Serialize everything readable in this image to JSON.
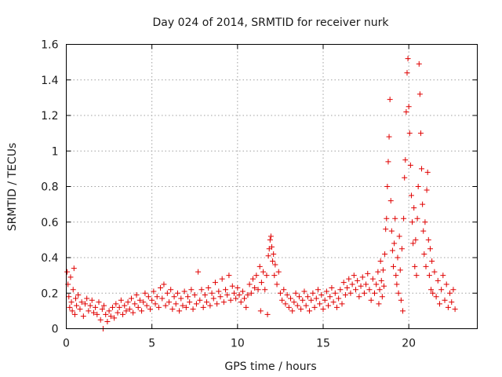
{
  "chart_data": {
    "type": "scatter",
    "title": "Day 024 of 2014, SRMTID for receiver nurk",
    "xlabel": "GPS time / hours",
    "ylabel": "SRMTID / TECUs",
    "xlim": [
      0,
      24
    ],
    "ylim": [
      0,
      1.6
    ],
    "xticks": [
      0,
      5,
      10,
      15,
      20
    ],
    "yticks": [
      0,
      0.2,
      0.4,
      0.6,
      0.8,
      1,
      1.2,
      1.4,
      1.6
    ],
    "xtick_labels": [
      "0",
      "5",
      "10",
      "15",
      "20"
    ],
    "ytick_labels": [
      "0",
      "0.2",
      "0.4",
      "0.6",
      "0.8",
      "1",
      "1.2",
      "1.4",
      "1.6"
    ],
    "grid": true,
    "marker": "plus",
    "color": "#e00000",
    "series": [
      {
        "name": "SRMTID",
        "points": [
          [
            0.05,
            0.32
          ],
          [
            0.1,
            0.25
          ],
          [
            0.15,
            0.18
          ],
          [
            0.2,
            0.12
          ],
          [
            0.25,
            0.29
          ],
          [
            0.3,
            0.15
          ],
          [
            0.35,
            0.1
          ],
          [
            0.4,
            0.22
          ],
          [
            0.45,
            0.34
          ],
          [
            0.5,
            0.08
          ],
          [
            0.55,
            0.17
          ],
          [
            0.6,
            0.13
          ],
          [
            0.7,
            0.19
          ],
          [
            0.8,
            0.11
          ],
          [
            0.9,
            0.15
          ],
          [
            1.0,
            0.07
          ],
          [
            1.1,
            0.14
          ],
          [
            1.2,
            0.17
          ],
          [
            1.3,
            0.1
          ],
          [
            1.4,
            0.13
          ],
          [
            1.5,
            0.16
          ],
          [
            1.6,
            0.09
          ],
          [
            1.7,
            0.12
          ],
          [
            1.8,
            0.08
          ],
          [
            1.9,
            0.15
          ],
          [
            2.0,
            0.05
          ],
          [
            2.1,
            0.11
          ],
          [
            2.15,
            0.0
          ],
          [
            2.2,
            0.13
          ],
          [
            2.3,
            0.08
          ],
          [
            2.4,
            0.04
          ],
          [
            2.5,
            0.1
          ],
          [
            2.6,
            0.07
          ],
          [
            2.7,
            0.12
          ],
          [
            2.8,
            0.06
          ],
          [
            2.9,
            0.14
          ],
          [
            3.0,
            0.09
          ],
          [
            3.1,
            0.12
          ],
          [
            3.2,
            0.16
          ],
          [
            3.3,
            0.08
          ],
          [
            3.4,
            0.13
          ],
          [
            3.5,
            0.1
          ],
          [
            3.6,
            0.15
          ],
          [
            3.7,
            0.11
          ],
          [
            3.8,
            0.17
          ],
          [
            3.9,
            0.09
          ],
          [
            4.0,
            0.14
          ],
          [
            4.1,
            0.19
          ],
          [
            4.2,
            0.12
          ],
          [
            4.3,
            0.16
          ],
          [
            4.4,
            0.1
          ],
          [
            4.5,
            0.15
          ],
          [
            4.6,
            0.2
          ],
          [
            4.7,
            0.13
          ],
          [
            4.8,
            0.18
          ],
          [
            4.9,
            0.11
          ],
          [
            5.0,
            0.16
          ],
          [
            5.1,
            0.21
          ],
          [
            5.2,
            0.14
          ],
          [
            5.3,
            0.18
          ],
          [
            5.4,
            0.12
          ],
          [
            5.5,
            0.23
          ],
          [
            5.6,
            0.17
          ],
          [
            5.7,
            0.25
          ],
          [
            5.8,
            0.13
          ],
          [
            5.9,
            0.2
          ],
          [
            6.0,
            0.15
          ],
          [
            6.1,
            0.22
          ],
          [
            6.2,
            0.11
          ],
          [
            6.3,
            0.18
          ],
          [
            6.4,
            0.14
          ],
          [
            6.5,
            0.2
          ],
          [
            6.6,
            0.1
          ],
          [
            6.7,
            0.17
          ],
          [
            6.8,
            0.13
          ],
          [
            6.9,
            0.21
          ],
          [
            7.0,
            0.12
          ],
          [
            7.1,
            0.18
          ],
          [
            7.2,
            0.15
          ],
          [
            7.3,
            0.22
          ],
          [
            7.4,
            0.11
          ],
          [
            7.5,
            0.19
          ],
          [
            7.6,
            0.14
          ],
          [
            7.7,
            0.32
          ],
          [
            7.8,
            0.16
          ],
          [
            7.9,
            0.22
          ],
          [
            8.0,
            0.12
          ],
          [
            8.1,
            0.19
          ],
          [
            8.2,
            0.15
          ],
          [
            8.3,
            0.23
          ],
          [
            8.4,
            0.13
          ],
          [
            8.5,
            0.2
          ],
          [
            8.6,
            0.17
          ],
          [
            8.7,
            0.26
          ],
          [
            8.8,
            0.14
          ],
          [
            8.9,
            0.21
          ],
          [
            9.0,
            0.18
          ],
          [
            9.1,
            0.28
          ],
          [
            9.2,
            0.15
          ],
          [
            9.3,
            0.22
          ],
          [
            9.4,
            0.19
          ],
          [
            9.5,
            0.3
          ],
          [
            9.6,
            0.16
          ],
          [
            9.7,
            0.24
          ],
          [
            9.8,
            0.2
          ],
          [
            9.9,
            0.17
          ],
          [
            10.0,
            0.23
          ],
          [
            10.1,
            0.19
          ],
          [
            10.2,
            0.15
          ],
          [
            10.3,
            0.21
          ],
          [
            10.4,
            0.17
          ],
          [
            10.5,
            0.12
          ],
          [
            10.6,
            0.19
          ],
          [
            10.7,
            0.25
          ],
          [
            10.8,
            0.2
          ],
          [
            10.9,
            0.28
          ],
          [
            11.0,
            0.23
          ],
          [
            11.1,
            0.3
          ],
          [
            11.2,
            0.22
          ],
          [
            11.3,
            0.35
          ],
          [
            11.35,
            0.1
          ],
          [
            11.4,
            0.26
          ],
          [
            11.5,
            0.32
          ],
          [
            11.6,
            0.22
          ],
          [
            11.7,
            0.3
          ],
          [
            11.75,
            0.08
          ],
          [
            11.8,
            0.41
          ],
          [
            11.85,
            0.45
          ],
          [
            11.9,
            0.5
          ],
          [
            11.95,
            0.52
          ],
          [
            12.0,
            0.46
          ],
          [
            12.05,
            0.38
          ],
          [
            12.1,
            0.42
          ],
          [
            12.15,
            0.3
          ],
          [
            12.2,
            0.36
          ],
          [
            12.3,
            0.25
          ],
          [
            12.4,
            0.32
          ],
          [
            12.5,
            0.2
          ],
          [
            12.6,
            0.16
          ],
          [
            12.7,
            0.22
          ],
          [
            12.8,
            0.14
          ],
          [
            12.9,
            0.19
          ],
          [
            13.0,
            0.12
          ],
          [
            13.1,
            0.17
          ],
          [
            13.2,
            0.1
          ],
          [
            13.3,
            0.15
          ],
          [
            13.4,
            0.2
          ],
          [
            13.5,
            0.13
          ],
          [
            13.6,
            0.18
          ],
          [
            13.7,
            0.11
          ],
          [
            13.8,
            0.16
          ],
          [
            13.9,
            0.21
          ],
          [
            14.0,
            0.13
          ],
          [
            14.1,
            0.18
          ],
          [
            14.2,
            0.1
          ],
          [
            14.3,
            0.16
          ],
          [
            14.4,
            0.2
          ],
          [
            14.5,
            0.12
          ],
          [
            14.6,
            0.17
          ],
          [
            14.7,
            0.22
          ],
          [
            14.8,
            0.14
          ],
          [
            14.9,
            0.19
          ],
          [
            15.0,
            0.11
          ],
          [
            15.1,
            0.16
          ],
          [
            15.2,
            0.21
          ],
          [
            15.3,
            0.13
          ],
          [
            15.4,
            0.18
          ],
          [
            15.5,
            0.23
          ],
          [
            15.6,
            0.15
          ],
          [
            15.7,
            0.2
          ],
          [
            15.8,
            0.12
          ],
          [
            15.9,
            0.17
          ],
          [
            16.0,
            0.22
          ],
          [
            16.1,
            0.14
          ],
          [
            16.2,
            0.26
          ],
          [
            16.3,
            0.19
          ],
          [
            16.4,
            0.23
          ],
          [
            16.5,
            0.28
          ],
          [
            16.6,
            0.2
          ],
          [
            16.7,
            0.25
          ],
          [
            16.8,
            0.3
          ],
          [
            16.9,
            0.22
          ],
          [
            17.0,
            0.27
          ],
          [
            17.1,
            0.18
          ],
          [
            17.2,
            0.24
          ],
          [
            17.3,
            0.29
          ],
          [
            17.4,
            0.2
          ],
          [
            17.5,
            0.25
          ],
          [
            17.6,
            0.31
          ],
          [
            17.7,
            0.22
          ],
          [
            17.8,
            0.16
          ],
          [
            17.9,
            0.28
          ],
          [
            18.0,
            0.2
          ],
          [
            18.1,
            0.25
          ],
          [
            18.2,
            0.32
          ],
          [
            18.25,
            0.14
          ],
          [
            18.3,
            0.22
          ],
          [
            18.35,
            0.38
          ],
          [
            18.4,
            0.27
          ],
          [
            18.45,
            0.18
          ],
          [
            18.5,
            0.33
          ],
          [
            18.55,
            0.24
          ],
          [
            18.6,
            0.42
          ],
          [
            18.65,
            0.56
          ],
          [
            18.7,
            0.62
          ],
          [
            18.75,
            0.8
          ],
          [
            18.8,
            0.94
          ],
          [
            18.85,
            1.08
          ],
          [
            18.9,
            1.29
          ],
          [
            18.95,
            0.72
          ],
          [
            19.0,
            0.55
          ],
          [
            19.05,
            0.44
          ],
          [
            19.1,
            0.35
          ],
          [
            19.15,
            0.48
          ],
          [
            19.2,
            0.62
          ],
          [
            19.25,
            0.3
          ],
          [
            19.3,
            0.25
          ],
          [
            19.35,
            0.4
          ],
          [
            19.4,
            0.2
          ],
          [
            19.45,
            0.52
          ],
          [
            19.5,
            0.33
          ],
          [
            19.55,
            0.16
          ],
          [
            19.6,
            0.45
          ],
          [
            19.65,
            0.1
          ],
          [
            19.7,
            0.62
          ],
          [
            19.75,
            0.85
          ],
          [
            19.8,
            0.95
          ],
          [
            19.85,
            1.22
          ],
          [
            19.9,
            1.44
          ],
          [
            19.95,
            1.52
          ],
          [
            20.0,
            1.25
          ],
          [
            20.05,
            1.1
          ],
          [
            20.1,
            0.92
          ],
          [
            20.15,
            0.75
          ],
          [
            20.2,
            0.6
          ],
          [
            20.25,
            0.48
          ],
          [
            20.3,
            0.68
          ],
          [
            20.35,
            0.35
          ],
          [
            20.4,
            0.5
          ],
          [
            20.45,
            0.3
          ],
          [
            20.5,
            0.62
          ],
          [
            20.55,
            0.8
          ],
          [
            20.6,
            1.49
          ],
          [
            20.65,
            1.32
          ],
          [
            20.7,
            1.1
          ],
          [
            20.75,
            0.9
          ],
          [
            20.8,
            0.7
          ],
          [
            20.85,
            0.55
          ],
          [
            20.9,
            0.42
          ],
          [
            20.95,
            0.6
          ],
          [
            21.0,
            0.35
          ],
          [
            21.05,
            0.78
          ],
          [
            21.1,
            0.88
          ],
          [
            21.15,
            0.5
          ],
          [
            21.2,
            0.3
          ],
          [
            21.25,
            0.45
          ],
          [
            21.3,
            0.22
          ],
          [
            21.35,
            0.38
          ],
          [
            21.4,
            0.2
          ],
          [
            21.5,
            0.32
          ],
          [
            21.6,
            0.18
          ],
          [
            21.7,
            0.27
          ],
          [
            21.8,
            0.14
          ],
          [
            21.9,
            0.22
          ],
          [
            22.0,
            0.3
          ],
          [
            22.1,
            0.16
          ],
          [
            22.2,
            0.25
          ],
          [
            22.3,
            0.12
          ],
          [
            22.4,
            0.2
          ],
          [
            22.5,
            0.15
          ],
          [
            22.6,
            0.22
          ],
          [
            22.7,
            0.11
          ]
        ]
      }
    ]
  }
}
